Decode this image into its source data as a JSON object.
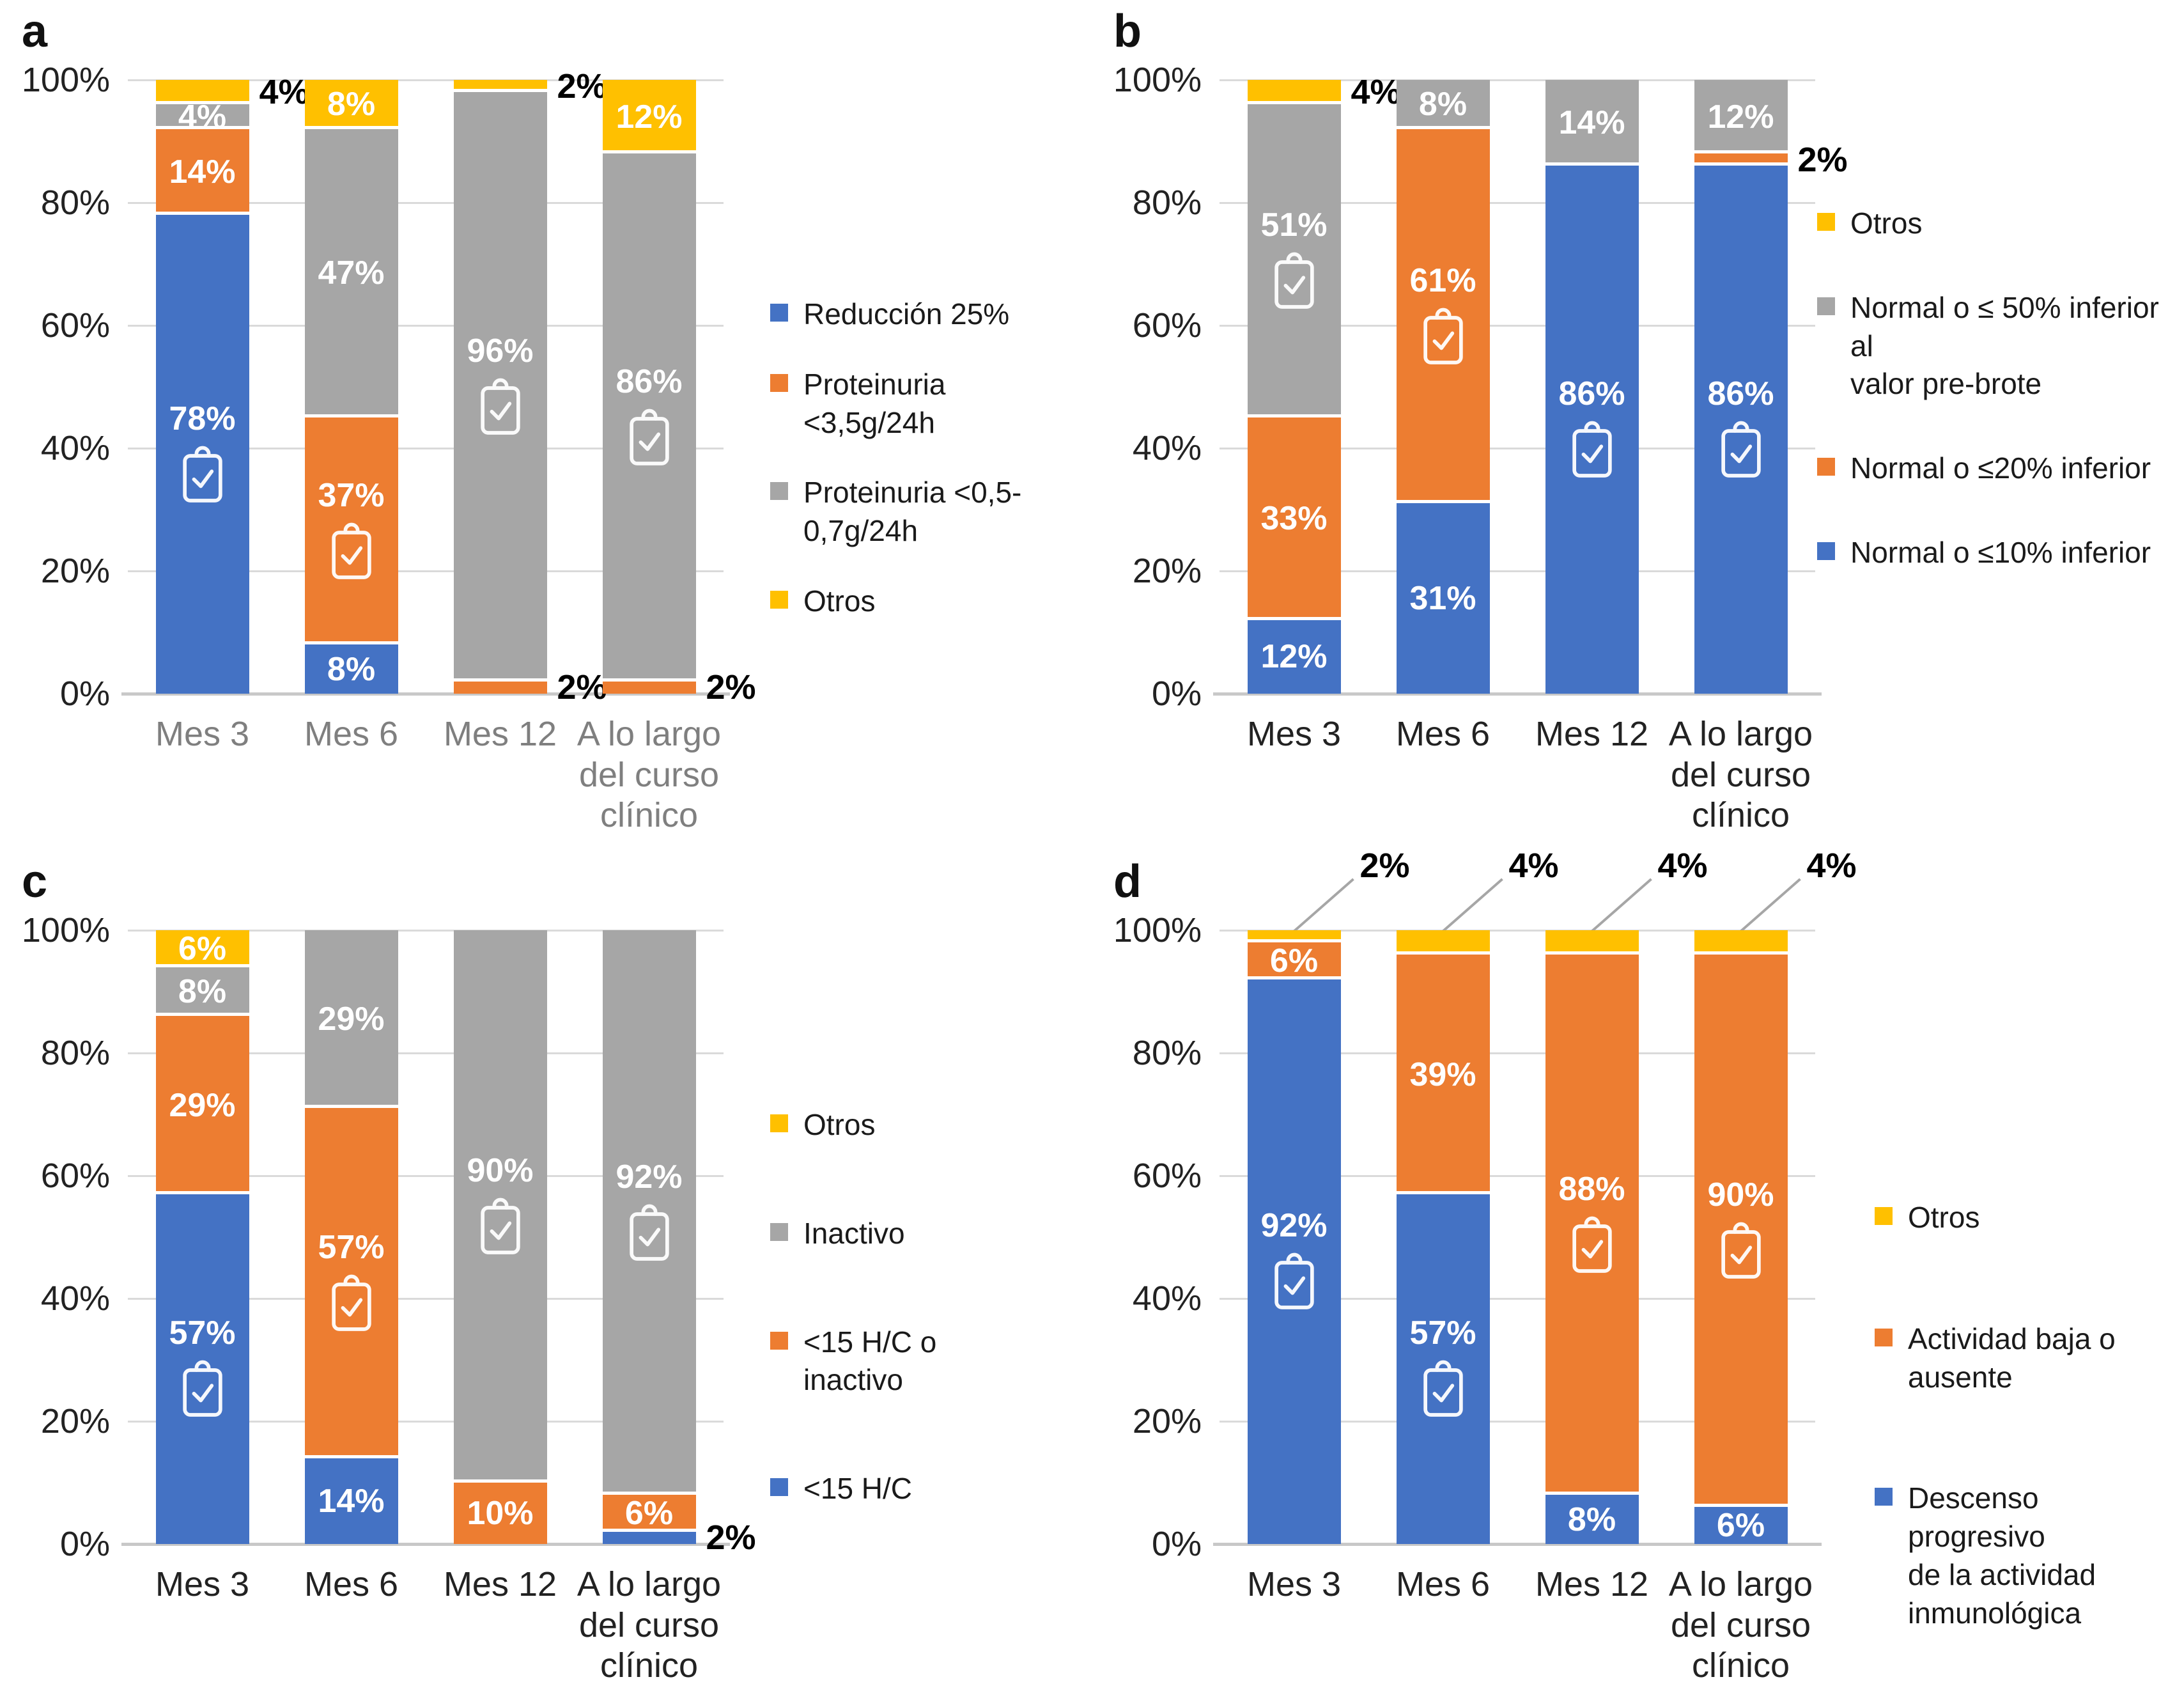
{
  "colors": {
    "blue": "#4472C4",
    "orange": "#ED7D31",
    "gray": "#A6A6A6",
    "yellow": "#FFC000"
  },
  "y_axis": {
    "ticks": [
      "0%",
      "20%",
      "40%",
      "60%",
      "80%",
      "100%"
    ],
    "max": 100
  },
  "chart_data": [
    {
      "type": "bar",
      "stacked": true,
      "panel": "a",
      "title": "",
      "categories": [
        "Mes 3",
        "Mes 6",
        "Mes 12",
        "A lo largo del curso clínico"
      ],
      "ylim": [
        0,
        100
      ],
      "yticks": [
        "0%",
        "20%",
        "40%",
        "60%",
        "80%",
        "100%"
      ],
      "grid": true,
      "legend_position": "right",
      "series": [
        {
          "name": "Reducción 25%",
          "color": "#4472C4",
          "values": [
            78,
            8,
            0,
            0
          ]
        },
        {
          "name": "Proteinuria <3,5g/24h",
          "color": "#ED7D31",
          "values": [
            14,
            37,
            2,
            2
          ]
        },
        {
          "name": "Proteinuria <0,5-0,7g/24h",
          "color": "#A6A6A6",
          "values": [
            4,
            47,
            96,
            86
          ]
        },
        {
          "name": "Otros",
          "color": "#FFC000",
          "values": [
            4,
            8,
            2,
            12
          ]
        }
      ]
    },
    {
      "type": "bar",
      "stacked": true,
      "panel": "b",
      "title": "",
      "categories": [
        "Mes 3",
        "Mes 6",
        "Mes 12",
        "A lo largo del curso clínico"
      ],
      "ylim": [
        0,
        100
      ],
      "yticks": [
        "0%",
        "20%",
        "40%",
        "60%",
        "80%",
        "100%"
      ],
      "grid": true,
      "legend_position": "right",
      "series": [
        {
          "name": "Normal o ≤10% inferior",
          "color": "#4472C4",
          "values": [
            12,
            31,
            86,
            86
          ]
        },
        {
          "name": "Normal o ≤20% inferior",
          "color": "#ED7D31",
          "values": [
            33,
            61,
            0,
            2
          ]
        },
        {
          "name": "Normal o ≤ 50% inferior al valor pre-brote",
          "color": "#A6A6A6",
          "values": [
            51,
            8,
            14,
            12
          ]
        },
        {
          "name": "Otros",
          "color": "#FFC000",
          "values": [
            4,
            0,
            0,
            0
          ]
        }
      ]
    },
    {
      "type": "bar",
      "stacked": true,
      "panel": "c",
      "title": "",
      "categories": [
        "Mes 3",
        "Mes 6",
        "Mes 12",
        "A lo largo del curso clínico"
      ],
      "ylim": [
        0,
        100
      ],
      "yticks": [
        "0%",
        "20%",
        "40%",
        "60%",
        "80%",
        "100%"
      ],
      "grid": true,
      "legend_position": "right",
      "series": [
        {
          "name": "<15 H/C",
          "color": "#4472C4",
          "values": [
            57,
            14,
            0,
            2
          ]
        },
        {
          "name": "<15 H/C o inactivo",
          "color": "#ED7D31",
          "values": [
            29,
            57,
            10,
            6
          ]
        },
        {
          "name": "Inactivo",
          "color": "#A6A6A6",
          "values": [
            8,
            29,
            90,
            92
          ]
        },
        {
          "name": "Otros",
          "color": "#FFC000",
          "values": [
            6,
            0,
            0,
            0
          ]
        }
      ]
    },
    {
      "type": "bar",
      "stacked": true,
      "panel": "d",
      "title": "",
      "categories": [
        "Mes 3",
        "Mes 6",
        "Mes 12",
        "A lo largo del curso clínico"
      ],
      "ylim": [
        0,
        100
      ],
      "yticks": [
        "0%",
        "20%",
        "40%",
        "60%",
        "80%",
        "100%"
      ],
      "grid": true,
      "legend_position": "right",
      "series": [
        {
          "name": "Descenso progresivo de la actividad inmunológica",
          "color": "#4472C4",
          "values": [
            92,
            57,
            8,
            6
          ]
        },
        {
          "name": "Actividad baja o ausente",
          "color": "#ED7D31",
          "values": [
            6,
            39,
            88,
            90
          ]
        },
        {
          "name": "Otros",
          "color": "#FFC000",
          "values": [
            2,
            4,
            4,
            4
          ]
        }
      ]
    }
  ],
  "panels": [
    {
      "letter": "a",
      "x_label_color": "#7f7f7f",
      "categories_lines": [
        [
          "Mes 3"
        ],
        [
          "Mes 6"
        ],
        [
          "Mes 12"
        ],
        [
          "A lo largo",
          "del curso",
          "clínico"
        ]
      ],
      "legend": [
        {
          "key": "blue",
          "lines": [
            "Reducción 25%"
          ]
        },
        {
          "key": "orange",
          "lines": [
            "Proteinuria",
            "<3,5g/24h"
          ]
        },
        {
          "key": "gray",
          "lines": [
            "Proteinuria <0,5-",
            "0,7g/24h"
          ]
        },
        {
          "key": "yellow",
          "lines": [
            "Otros"
          ]
        }
      ],
      "bars": [
        {
          "id": "mes-3",
          "cat": "Mes 3",
          "segments": [
            {
              "key": "blue",
              "name": "Reducción 25%",
              "value": 78,
              "label": "78%",
              "pos": "in",
              "icon": true
            },
            {
              "key": "orange",
              "name": "Proteinuria <3,5g/24h",
              "value": 14,
              "label": "14%",
              "pos": "in"
            },
            {
              "key": "gray",
              "name": "Proteinuria <0,5-0,7g/24h",
              "value": 4,
              "label": "4%",
              "pos": "in"
            },
            {
              "key": "yellow",
              "name": "Otros",
              "value": 4,
              "label": "4%",
              "pos": "out-right"
            }
          ]
        },
        {
          "id": "mes-6",
          "cat": "Mes 6",
          "segments": [
            {
              "key": "blue",
              "name": "Reducción 25%",
              "value": 8,
              "label": "8%",
              "pos": "in"
            },
            {
              "key": "orange",
              "name": "Proteinuria <3,5g/24h",
              "value": 37,
              "label": "37%",
              "pos": "in",
              "icon": true
            },
            {
              "key": "gray",
              "name": "Proteinuria <0,5-0,7g/24h",
              "value": 47,
              "label": "47%",
              "pos": "in"
            },
            {
              "key": "yellow",
              "name": "Otros",
              "value": 8,
              "label": "8%",
              "pos": "in"
            }
          ]
        },
        {
          "id": "mes-12",
          "cat": "Mes 12",
          "segments": [
            {
              "key": "orange",
              "name": "Proteinuria <3,5g/24h",
              "value": 2,
              "label": "2%",
              "pos": "out-right"
            },
            {
              "key": "gray",
              "name": "Proteinuria <0,5-0,7g/24h",
              "value": 96,
              "label": "96%",
              "pos": "in",
              "icon": true
            },
            {
              "key": "yellow",
              "name": "Otros",
              "value": 2,
              "label": "2%",
              "pos": "out-right"
            }
          ]
        },
        {
          "id": "a-lo-largo",
          "cat": "A lo largo del curso clínico",
          "segments": [
            {
              "key": "orange",
              "name": "Proteinuria <3,5g/24h",
              "value": 2,
              "label": "2%",
              "pos": "out-right"
            },
            {
              "key": "gray",
              "name": "Proteinuria <0,5-0,7g/24h",
              "value": 86,
              "label": "86%",
              "pos": "in",
              "icon": true
            },
            {
              "key": "yellow",
              "name": "Otros",
              "value": 12,
              "label": "12%",
              "pos": "in"
            }
          ]
        }
      ]
    },
    {
      "letter": "b",
      "x_label_color": "#222222",
      "categories_lines": [
        [
          "Mes 3"
        ],
        [
          "Mes 6"
        ],
        [
          "Mes 12"
        ],
        [
          "A lo largo",
          "del curso",
          "clínico"
        ]
      ],
      "legend": [
        {
          "key": "yellow",
          "lines": [
            "Otros"
          ]
        },
        {
          "key": "gray",
          "lines": [
            "Normal o ≤ 50% inferior al",
            "valor pre-brote"
          ]
        },
        {
          "key": "orange",
          "lines": [
            "Normal o ≤20% inferior"
          ]
        },
        {
          "key": "blue",
          "lines": [
            "Normal o ≤10% inferior"
          ]
        }
      ],
      "bars": [
        {
          "id": "mes-3",
          "cat": "Mes 3",
          "segments": [
            {
              "key": "blue",
              "name": "Normal o ≤10% inferior",
              "value": 12,
              "label": "12%",
              "pos": "in"
            },
            {
              "key": "orange",
              "name": "Normal o ≤20% inferior",
              "value": 33,
              "label": "33%",
              "pos": "in"
            },
            {
              "key": "gray",
              "name": "Normal o ≤ 50% inferior al valor pre-brote",
              "value": 51,
              "label": "51%",
              "pos": "in",
              "icon": true
            },
            {
              "key": "yellow",
              "name": "Otros",
              "value": 4,
              "label": "4%",
              "pos": "out-right"
            }
          ]
        },
        {
          "id": "mes-6",
          "cat": "Mes 6",
          "segments": [
            {
              "key": "blue",
              "name": "Normal o ≤10% inferior",
              "value": 31,
              "label": "31%",
              "pos": "in"
            },
            {
              "key": "orange",
              "name": "Normal o ≤20% inferior",
              "value": 61,
              "label": "61%",
              "pos": "in",
              "icon": true
            },
            {
              "key": "gray",
              "name": "Normal o ≤ 50% inferior al valor pre-brote",
              "value": 8,
              "label": "8%",
              "pos": "in"
            }
          ]
        },
        {
          "id": "mes-12",
          "cat": "Mes 12",
          "segments": [
            {
              "key": "blue",
              "name": "Normal o ≤10% inferior",
              "value": 86,
              "label": "86%",
              "pos": "in",
              "icon": true
            },
            {
              "key": "gray",
              "name": "Normal o ≤ 50% inferior al valor pre-brote",
              "value": 14,
              "label": "14%",
              "pos": "in"
            }
          ]
        },
        {
          "id": "a-lo-largo",
          "cat": "A lo largo del curso clínico",
          "segments": [
            {
              "key": "blue",
              "name": "Normal o ≤10% inferior",
              "value": 86,
              "label": "86%",
              "pos": "in",
              "icon": true
            },
            {
              "key": "orange",
              "name": "Normal o ≤20% inferior",
              "value": 2,
              "label": "2%",
              "pos": "out-right"
            },
            {
              "key": "gray",
              "name": "Normal o ≤ 50% inferior al valor pre-brote",
              "value": 12,
              "label": "12%",
              "pos": "in"
            }
          ]
        }
      ]
    },
    {
      "letter": "c",
      "x_label_color": "#222222",
      "categories_lines": [
        [
          "Mes 3"
        ],
        [
          "Mes 6"
        ],
        [
          "Mes 12"
        ],
        [
          "A lo largo",
          "del curso",
          "clínico"
        ]
      ],
      "legend": [
        {
          "key": "yellow",
          "lines": [
            "Otros"
          ]
        },
        {
          "key": "gray",
          "lines": [
            "Inactivo"
          ]
        },
        {
          "key": "orange",
          "lines": [
            "<15 H/C o",
            "inactivo"
          ]
        },
        {
          "key": "blue",
          "lines": [
            "<15 H/C"
          ]
        }
      ],
      "bars": [
        {
          "id": "mes-3",
          "cat": "Mes 3",
          "segments": [
            {
              "key": "blue",
              "name": "<15 H/C",
              "value": 57,
              "label": "57%",
              "pos": "in",
              "icon": true
            },
            {
              "key": "orange",
              "name": "<15 H/C o inactivo",
              "value": 29,
              "label": "29%",
              "pos": "in"
            },
            {
              "key": "gray",
              "name": "Inactivo",
              "value": 8,
              "label": "8%",
              "pos": "in"
            },
            {
              "key": "yellow",
              "name": "Otros",
              "value": 6,
              "label": "6%",
              "pos": "in"
            }
          ]
        },
        {
          "id": "mes-6",
          "cat": "Mes 6",
          "segments": [
            {
              "key": "blue",
              "name": "<15 H/C",
              "value": 14,
              "label": "14%",
              "pos": "in"
            },
            {
              "key": "orange",
              "name": "<15 H/C o inactivo",
              "value": 57,
              "label": "57%",
              "pos": "in",
              "icon": true
            },
            {
              "key": "gray",
              "name": "Inactivo",
              "value": 29,
              "label": "29%",
              "pos": "in"
            }
          ]
        },
        {
          "id": "mes-12",
          "cat": "Mes 12",
          "segments": [
            {
              "key": "orange",
              "name": "<15 H/C o inactivo",
              "value": 10,
              "label": "10%",
              "pos": "in"
            },
            {
              "key": "gray",
              "name": "Inactivo",
              "value": 90,
              "label": "90%",
              "pos": "in",
              "icon": true
            }
          ]
        },
        {
          "id": "a-lo-largo",
          "cat": "A lo largo del curso clínico",
          "segments": [
            {
              "key": "blue",
              "name": "<15 H/C",
              "value": 2,
              "label": "2%",
              "pos": "out-right"
            },
            {
              "key": "orange",
              "name": "<15 H/C o inactivo",
              "value": 6,
              "label": "6%",
              "pos": "in"
            },
            {
              "key": "gray",
              "name": "Inactivo",
              "value": 92,
              "label": "92%",
              "pos": "in",
              "icon": true
            }
          ]
        }
      ]
    },
    {
      "letter": "d",
      "x_label_color": "#222222",
      "categories_lines": [
        [
          "Mes 3"
        ],
        [
          "Mes 6"
        ],
        [
          "Mes 12"
        ],
        [
          "A lo largo",
          "del curso",
          "clínico"
        ]
      ],
      "legend": [
        {
          "key": "yellow",
          "lines": [
            "Otros"
          ]
        },
        {
          "key": "orange",
          "lines": [
            "Actividad baja o",
            "ausente"
          ]
        },
        {
          "key": "blue",
          "lines": [
            "Descenso progresivo",
            "de la actividad",
            "inmunológica"
          ]
        }
      ],
      "bars": [
        {
          "id": "mes-3",
          "cat": "Mes 3",
          "segments": [
            {
              "key": "blue",
              "name": "Descenso progresivo de la actividad inmunológica",
              "value": 92,
              "label": "92%",
              "pos": "in",
              "icon": true
            },
            {
              "key": "orange",
              "name": "Actividad baja o ausente",
              "value": 6,
              "label": "6%",
              "pos": "in"
            },
            {
              "key": "yellow",
              "name": "Otros",
              "value": 2,
              "label": "2%",
              "pos": "out-top"
            }
          ]
        },
        {
          "id": "mes-6",
          "cat": "Mes 6",
          "segments": [
            {
              "key": "blue",
              "name": "Descenso progresivo de la actividad inmunológica",
              "value": 57,
              "label": "57%",
              "pos": "in",
              "icon": true
            },
            {
              "key": "orange",
              "name": "Actividad baja o ausente",
              "value": 39,
              "label": "39%",
              "pos": "in"
            },
            {
              "key": "yellow",
              "name": "Otros",
              "value": 4,
              "label": "4%",
              "pos": "out-top"
            }
          ]
        },
        {
          "id": "mes-12",
          "cat": "Mes 12",
          "segments": [
            {
              "key": "blue",
              "name": "Descenso progresivo de la actividad inmunológica",
              "value": 8,
              "label": "8%",
              "pos": "in"
            },
            {
              "key": "orange",
              "name": "Actividad baja o ausente",
              "value": 88,
              "label": "88%",
              "pos": "in",
              "icon": true
            },
            {
              "key": "yellow",
              "name": "Otros",
              "value": 4,
              "label": "4%",
              "pos": "out-top"
            }
          ]
        },
        {
          "id": "a-lo-largo",
          "cat": "A lo largo del curso clínico",
          "segments": [
            {
              "key": "blue",
              "name": "Descenso progresivo de la actividad inmunológica",
              "value": 6,
              "label": "6%",
              "pos": "in"
            },
            {
              "key": "orange",
              "name": "Actividad baja o ausente",
              "value": 90,
              "label": "90%",
              "pos": "in",
              "icon": true
            },
            {
              "key": "yellow",
              "name": "Otros",
              "value": 4,
              "label": "4%",
              "pos": "out-top"
            }
          ]
        }
      ]
    }
  ]
}
